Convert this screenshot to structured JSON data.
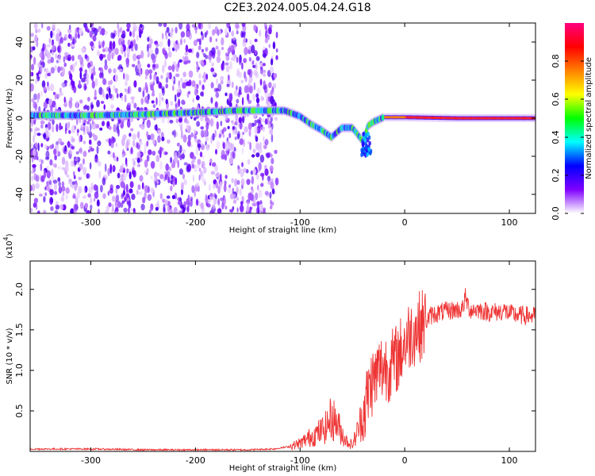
{
  "title": "C2E3.2024.005.04.24.G18",
  "chart_data": [
    {
      "type": "heatmap",
      "xlabel": "Height of straight line (km)",
      "ylabel": "Frequency (Hz)",
      "xlim": [
        -358,
        125
      ],
      "ylim": [
        -50,
        50
      ],
      "xticks": [
        -300,
        -200,
        -100,
        0,
        100
      ],
      "yticks": [
        40,
        20,
        0,
        -20,
        -40
      ],
      "colorbar": {
        "label": "Normalized spectral amplitude",
        "ticks": [
          "0.0",
          "0.2",
          "0.4",
          "0.6",
          "0.8"
        ],
        "range": [
          0,
          1
        ],
        "colors": [
          "#ffffff",
          "#8000ff",
          "#0000ff",
          "#00ffff",
          "#00ff00",
          "#ffff00",
          "#ff8000",
          "#ff0000",
          "#ff0080"
        ]
      },
      "noise_region_x": [
        -358,
        -122
      ],
      "ridge": [
        {
          "x": -358,
          "f": 1.5
        },
        {
          "x": -300,
          "f": 1.5
        },
        {
          "x": -250,
          "f": 2
        },
        {
          "x": -200,
          "f": 3
        },
        {
          "x": -160,
          "f": 4
        },
        {
          "x": -130,
          "f": 4
        },
        {
          "x": -115,
          "f": 4
        },
        {
          "x": -100,
          "f": 1
        },
        {
          "x": -90,
          "f": -3
        },
        {
          "x": -80,
          "f": -6
        },
        {
          "x": -70,
          "f": -10
        },
        {
          "x": -60,
          "f": -5
        },
        {
          "x": -50,
          "f": -5
        },
        {
          "x": -40,
          "f": -12
        },
        {
          "x": -35,
          "f": -4
        },
        {
          "x": -30,
          "f": -2
        },
        {
          "x": -20,
          "f": 0.5
        },
        {
          "x": 0,
          "f": 0.5
        },
        {
          "x": 50,
          "f": 0
        },
        {
          "x": 125,
          "f": 0
        }
      ]
    },
    {
      "type": "line",
      "xlabel": "Height of straight line (km)",
      "ylabel": "SNR (10 * v/v)",
      "multiplier": "(x10",
      "multiplier_exp": "4",
      "multiplier_close": ")",
      "xlim": [
        -358,
        125
      ],
      "ylim": [
        0,
        2.35
      ],
      "xticks": [
        -300,
        -200,
        -100,
        0,
        100
      ],
      "yticks": [
        "0.5",
        "1.0",
        "1.5",
        "2.0"
      ],
      "ytick_values": [
        0.5,
        1.0,
        1.5,
        2.0
      ],
      "color": "#ee3333",
      "series": [
        {
          "x": [
            -358,
            -300,
            -250,
            -200,
            -150,
            -125,
            -110,
            -100,
            -90,
            -80,
            -75,
            -70,
            -65,
            -60,
            -55,
            -50,
            -45,
            -40,
            -35,
            -32,
            -28,
            -25,
            -20,
            -15,
            -10,
            -5,
            0,
            5,
            10,
            15,
            20,
            25,
            30,
            35,
            40,
            45,
            50,
            55,
            58,
            62,
            70,
            80,
            90,
            95,
            100,
            110,
            125
          ],
          "y": [
            0.03,
            0.03,
            0.02,
            0.02,
            0.02,
            0.03,
            0.06,
            0.1,
            0.18,
            0.25,
            0.3,
            0.42,
            0.35,
            0.22,
            0.12,
            0.08,
            0.25,
            0.45,
            0.7,
            0.85,
            0.9,
            1.0,
            1.05,
            1.05,
            1.1,
            1.2,
            1.35,
            1.45,
            1.5,
            1.55,
            1.6,
            1.68,
            1.7,
            1.72,
            1.73,
            1.74,
            1.75,
            1.75,
            1.9,
            1.75,
            1.75,
            1.72,
            1.72,
            1.74,
            1.7,
            1.68,
            1.67
          ]
        }
      ]
    }
  ]
}
